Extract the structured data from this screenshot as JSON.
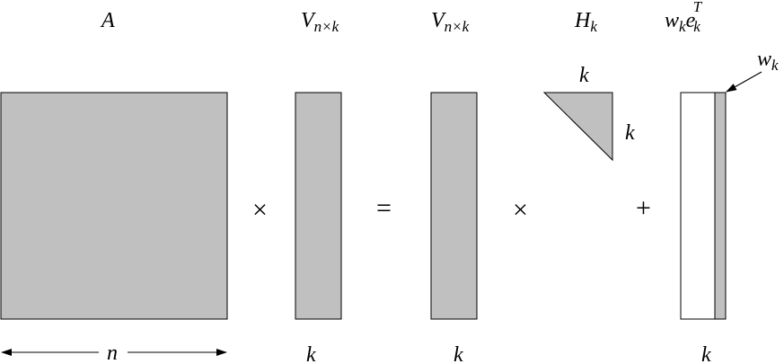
{
  "colors": {
    "fill": "#c0c0c0",
    "stroke": "#000000"
  },
  "labels": {
    "A": "A",
    "V1": "V",
    "V1_sub": "n×k",
    "V2": "V",
    "V2_sub": "n×k",
    "H": "H",
    "H_sub": "k",
    "w": "w",
    "w_sub": "k",
    "e": "e",
    "e_sub": "k",
    "e_sup": "T",
    "tri_top": "k",
    "tri_right": "k",
    "wk": "w",
    "wk_sub": "k",
    "n": "n",
    "k1": "k",
    "k2": "k",
    "k3": "k"
  },
  "operators": {
    "times1": "×",
    "equals": "=",
    "times2": "×",
    "plus": "+"
  }
}
